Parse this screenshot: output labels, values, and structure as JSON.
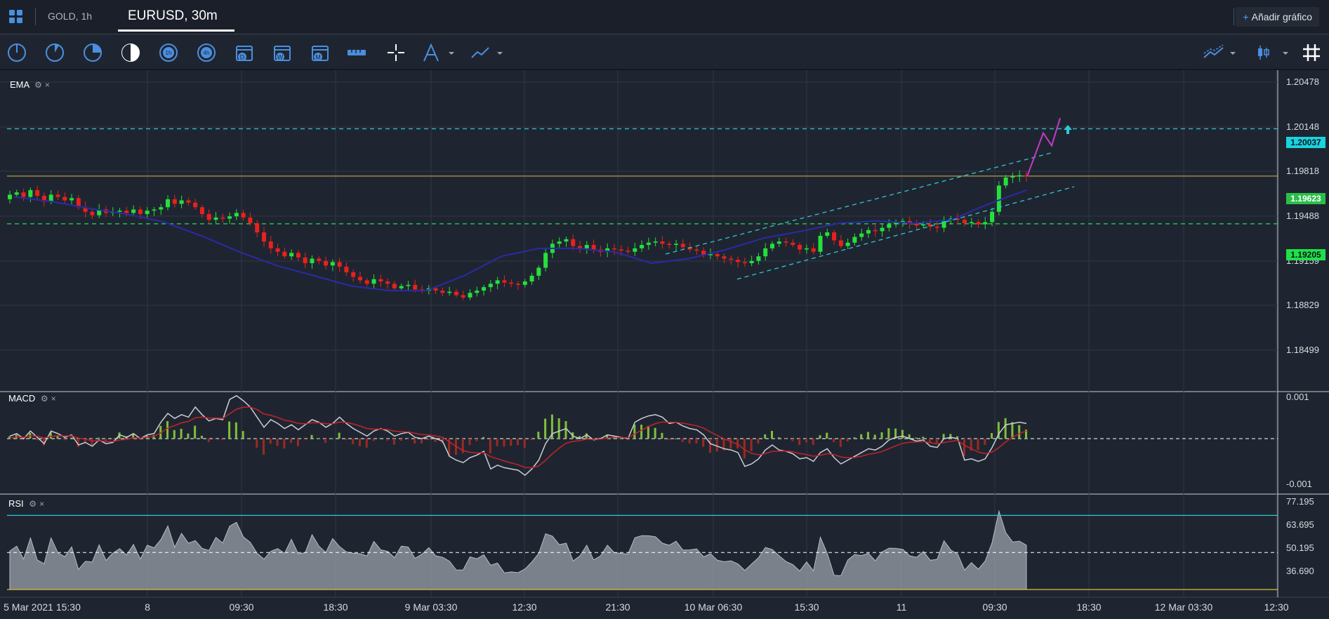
{
  "tabs": {
    "inactive": "GOLD, 1h",
    "active": "EURUSD, 30m",
    "add_label": "Añadir gráfico",
    "add_prefix": "+"
  },
  "toolbar": {
    "left_icons": [
      "1-minute-timeframe-icon",
      "5-minute-timeframe-icon",
      "15-minute-timeframe-icon",
      "30-minute-timeframe-icon",
      "1-hour-timeframe-icon",
      "4-hour-timeframe-icon",
      "daily-calendar-icon",
      "weekly-calendar-icon",
      "monthly-calendar-icon",
      "ruler-icon",
      "crosshair-icon",
      "fibonacci-tool-icon",
      "trend-line-icon"
    ],
    "right_icons": [
      "chart-type-icon",
      "candle-type-icon",
      "grid-toggle-icon"
    ],
    "calendar_letters": [
      "D",
      "W",
      "M"
    ]
  },
  "panes": {
    "main": {
      "label": "EMA",
      "close": "×",
      "price_ticks": [
        "1.20478",
        "1.20148",
        "1.19818",
        "1.19488",
        "1.19159",
        "1.18829",
        "1.18499"
      ]
    },
    "macd": {
      "label": "MACD",
      "close": "×",
      "ticks": [
        "0.001",
        "-0.001"
      ]
    },
    "rsi": {
      "label": "RSI",
      "close": "×",
      "ticks": [
        "77.195",
        "63.695",
        "50.195",
        "36.690"
      ]
    }
  },
  "price_tags": {
    "upper": {
      "value": "1.20037",
      "color": "#19d3e0"
    },
    "current": {
      "value": "1.19623",
      "color": "#2bbf4a"
    },
    "lower": {
      "value": "1.19205",
      "color": "#1fe04a"
    }
  },
  "time_axis": [
    "5 Mar 2021 15:30",
    "8",
    "09:30",
    "18:30",
    "9 Mar 03:30",
    "12:30",
    "21:30",
    "10 Mar 06:30",
    "15:30",
    "11",
    "09:30",
    "18:30",
    "12 Mar 03:30",
    "12:30"
  ],
  "chart_data": {
    "type": "candlestick",
    "symbol": "EURUSD",
    "timeframe": "30m",
    "ylim": [
      1.1835,
      1.2055
    ],
    "levels": {
      "resistance": 1.20037,
      "current": 1.19623,
      "support": 1.19205
    },
    "colors": {
      "bull": "#25e03c",
      "bear": "#e8211c",
      "ema": "#2a2aa8",
      "channel": "#2fc7d6",
      "projection": "#c23cc7"
    },
    "closes": [
      1.1946,
      1.1948,
      1.1944,
      1.195,
      1.1945,
      1.194,
      1.1946,
      1.1944,
      1.1941,
      1.1943,
      1.1935,
      1.1931,
      1.1928,
      1.1933,
      1.193,
      1.1931,
      1.1932,
      1.193,
      1.1933,
      1.1929,
      1.1932,
      1.1933,
      1.1935,
      1.1942,
      1.1938,
      1.1941,
      1.1939,
      1.1935,
      1.1929,
      1.1924,
      1.1926,
      1.1925,
      1.1927,
      1.193,
      1.1926,
      1.1921,
      1.1913,
      1.1905,
      1.1899,
      1.1896,
      1.1892,
      1.1895,
      1.1891,
      1.1886,
      1.189,
      1.1888,
      1.1884,
      1.1887,
      1.1883,
      1.1878,
      1.1874,
      1.1871,
      1.1868,
      1.1872,
      1.187,
      1.1868,
      1.1864,
      1.1866,
      1.1867,
      1.1863,
      1.1862,
      1.1864,
      1.1862,
      1.186,
      1.1861,
      1.1858,
      1.1856,
      1.186,
      1.1862,
      1.1865,
      1.1868,
      1.1871,
      1.1869,
      1.1868,
      1.1867,
      1.187,
      1.1875,
      1.1882,
      1.1895,
      1.1903,
      1.1905,
      1.1907,
      1.1901,
      1.1899,
      1.1902,
      1.1898,
      1.1896,
      1.1899,
      1.1898,
      1.1897,
      1.1896,
      1.1899,
      1.1902,
      1.1904,
      1.1905,
      1.1903,
      1.1902,
      1.1903,
      1.19,
      1.1898,
      1.1897,
      1.1893,
      1.1894,
      1.1892,
      1.189,
      1.1889,
      1.1887,
      1.1886,
      1.1888,
      1.1892,
      1.1899,
      1.1903,
      1.1905,
      1.1904,
      1.1902,
      1.1898,
      1.1899,
      1.1896,
      1.191,
      1.1913,
      1.1906,
      1.1901,
      1.1904,
      1.1909,
      1.1912,
      1.1915,
      1.1914,
      1.1917,
      1.192,
      1.1922,
      1.1923,
      1.1921,
      1.1919,
      1.192,
      1.1918,
      1.1917,
      1.1924,
      1.1925,
      1.1924,
      1.1921,
      1.1922,
      1.192,
      1.1922,
      1.1931,
      1.1954,
      1.1961,
      1.1962,
      1.1963,
      1.1962
    ],
    "ema": [
      1.1944,
      1.194,
      1.1934,
      1.1929,
      1.1922,
      1.191,
      1.1896,
      1.1884,
      1.1875,
      1.1866,
      1.1862,
      1.1862,
      1.1875,
      1.1892,
      1.1899,
      1.1899,
      1.1896,
      1.1886,
      1.189,
      1.1898,
      1.1908,
      1.1914,
      1.1921,
      1.1923,
      1.1921,
      1.1924,
      1.1938,
      1.195
    ],
    "projection": [
      1.1962,
      1.2,
      1.1989,
      1.2013
    ],
    "macd": {
      "ylim": [
        -0.0012,
        0.0012
      ],
      "zero": 0
    },
    "rsi": {
      "ylim": [
        30,
        80
      ],
      "levels": [
        70,
        50,
        30
      ]
    }
  }
}
